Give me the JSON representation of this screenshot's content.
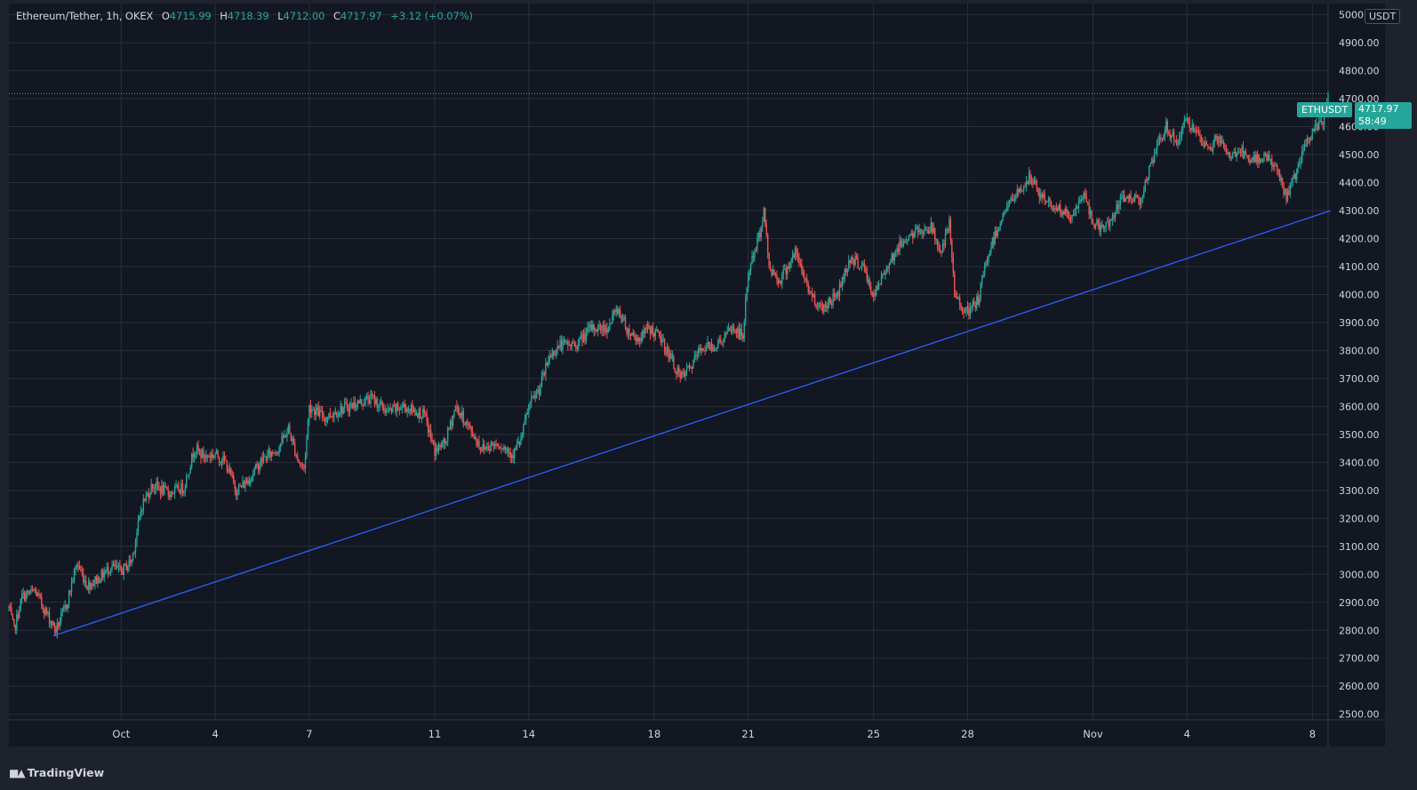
{
  "header": {
    "symbol": "Ethereum/Tether, 1h, OKEX",
    "o_label": "O",
    "o_value": "4715.99",
    "h_label": "H",
    "h_value": "4718.39",
    "l_label": "L",
    "l_value": "4712.00",
    "c_label": "C",
    "c_value": "4717.97",
    "change": "+3.12 (+0.07%)"
  },
  "price_badge": {
    "symbol": "ETHUSDT",
    "price": "4717.97",
    "countdown": "58:49"
  },
  "currency_unit": "USDT",
  "brand": {
    "name": "TradingView"
  },
  "colors": {
    "background": "#131722",
    "grid": "#2a2e39",
    "up": "#26a69a",
    "down": "#ef5350",
    "trendline": "#2962ff",
    "text": "#d1d4dc"
  },
  "chart_data": {
    "type": "candlestick",
    "title": "",
    "xlabel": "",
    "ylabel": "",
    "interval": "1h",
    "ylim": [
      2480,
      5040
    ],
    "y_ticks": [
      2500,
      2600,
      2700,
      2800,
      2900,
      3000,
      3100,
      3200,
      3300,
      3400,
      3500,
      3600,
      3700,
      3800,
      3900,
      4000,
      4100,
      4200,
      4300,
      4400,
      4500,
      4600,
      4700,
      4800,
      4900,
      5000
    ],
    "y_tick_labels": [
      "2500.00",
      "2600.00",
      "2700.00",
      "2800.00",
      "2900.00",
      "3000.00",
      "3100.00",
      "3200.00",
      "3300.00",
      "3400.00",
      "3500.00",
      "3600.00",
      "3700.00",
      "3800.00",
      "3900.00",
      "4000.00",
      "4100.00",
      "4200.00",
      "4300.00",
      "4400.00",
      "4500.00",
      "4600.00",
      "4700.00",
      "4800.00",
      "4900.00",
      "5000.00"
    ],
    "xlim": [
      "2021-09-27T10:00",
      "2021-11-08T12:00"
    ],
    "x_ticks": [
      {
        "label": "Oct",
        "date": "2021-10-01T00:00"
      },
      {
        "label": "4",
        "date": "2021-10-04T00:00"
      },
      {
        "label": "7",
        "date": "2021-10-07T00:00"
      },
      {
        "label": "11",
        "date": "2021-10-11T00:00"
      },
      {
        "label": "14",
        "date": "2021-10-14T00:00"
      },
      {
        "label": "18",
        "date": "2021-10-18T00:00"
      },
      {
        "label": "21",
        "date": "2021-10-21T00:00"
      },
      {
        "label": "25",
        "date": "2021-10-25T00:00"
      },
      {
        "label": "28",
        "date": "2021-10-28T00:00"
      },
      {
        "label": "Nov",
        "date": "2021-11-01T00:00"
      },
      {
        "label": "4",
        "date": "2021-11-04T00:00"
      },
      {
        "label": "8",
        "date": "2021-11-08T00:00"
      }
    ],
    "price_anchors": [
      [
        "2021-09-27T10:00",
        2880
      ],
      [
        "2021-09-27T14:00",
        2800
      ],
      [
        "2021-09-27T20:00",
        2920
      ],
      [
        "2021-09-28T06:00",
        2940
      ],
      [
        "2021-09-28T16:00",
        2850
      ],
      [
        "2021-09-28T22:00",
        2800
      ],
      [
        "2021-09-29T06:00",
        2890
      ],
      [
        "2021-09-29T14:00",
        3040
      ],
      [
        "2021-09-29T22:00",
        2960
      ],
      [
        "2021-09-30T08:00",
        2990
      ],
      [
        "2021-09-30T16:00",
        3030
      ],
      [
        "2021-10-01T00:00",
        3010
      ],
      [
        "2021-10-01T08:00",
        3050
      ],
      [
        "2021-10-01T16:00",
        3250
      ],
      [
        "2021-10-02T00:00",
        3320
      ],
      [
        "2021-10-02T12:00",
        3290
      ],
      [
        "2021-10-03T00:00",
        3310
      ],
      [
        "2021-10-03T08:00",
        3450
      ],
      [
        "2021-10-03T16:00",
        3420
      ],
      [
        "2021-10-04T00:00",
        3430
      ],
      [
        "2021-10-04T08:00",
        3400
      ],
      [
        "2021-10-04T16:00",
        3300
      ],
      [
        "2021-10-05T00:00",
        3330
      ],
      [
        "2021-10-05T12:00",
        3410
      ],
      [
        "2021-10-06T00:00",
        3450
      ],
      [
        "2021-10-06T08:00",
        3520
      ],
      [
        "2021-10-06T16:00",
        3400
      ],
      [
        "2021-10-06T20:00",
        3380
      ],
      [
        "2021-10-07T00:00",
        3600
      ],
      [
        "2021-10-07T12:00",
        3560
      ],
      [
        "2021-10-08T00:00",
        3590
      ],
      [
        "2021-10-08T12:00",
        3610
      ],
      [
        "2021-10-09T00:00",
        3630
      ],
      [
        "2021-10-09T12:00",
        3580
      ],
      [
        "2021-10-10T00:00",
        3600
      ],
      [
        "2021-10-10T16:00",
        3570
      ],
      [
        "2021-10-11T00:00",
        3440
      ],
      [
        "2021-10-11T08:00",
        3470
      ],
      [
        "2021-10-11T16:00",
        3600
      ],
      [
        "2021-10-12T00:00",
        3540
      ],
      [
        "2021-10-12T12:00",
        3450
      ],
      [
        "2021-10-13T00:00",
        3470
      ],
      [
        "2021-10-13T12:00",
        3430
      ],
      [
        "2021-10-13T18:00",
        3480
      ],
      [
        "2021-10-14T00:00",
        3600
      ],
      [
        "2021-10-14T08:00",
        3660
      ],
      [
        "2021-10-14T16:00",
        3780
      ],
      [
        "2021-10-15T00:00",
        3820
      ],
      [
        "2021-10-15T12:00",
        3820
      ],
      [
        "2021-10-16T00:00",
        3880
      ],
      [
        "2021-10-16T12:00",
        3880
      ],
      [
        "2021-10-16T20:00",
        3950
      ],
      [
        "2021-10-17T04:00",
        3870
      ],
      [
        "2021-10-17T12:00",
        3840
      ],
      [
        "2021-10-17T20:00",
        3880
      ],
      [
        "2021-10-18T04:00",
        3850
      ],
      [
        "2021-10-18T12:00",
        3780
      ],
      [
        "2021-10-18T20:00",
        3700
      ],
      [
        "2021-10-19T04:00",
        3740
      ],
      [
        "2021-10-19T12:00",
        3810
      ],
      [
        "2021-10-20T00:00",
        3820
      ],
      [
        "2021-10-20T12:00",
        3880
      ],
      [
        "2021-10-20T20:00",
        3850
      ],
      [
        "2021-10-21T00:00",
        4080
      ],
      [
        "2021-10-21T08:00",
        4200
      ],
      [
        "2021-10-21T12:00",
        4300
      ],
      [
        "2021-10-21T16:00",
        4100
      ],
      [
        "2021-10-22T00:00",
        4050
      ],
      [
        "2021-10-22T12:00",
        4150
      ],
      [
        "2021-10-23T00:00",
        4000
      ],
      [
        "2021-10-23T08:00",
        3950
      ],
      [
        "2021-10-23T20:00",
        4000
      ],
      [
        "2021-10-24T06:00",
        4130
      ],
      [
        "2021-10-24T16:00",
        4100
      ],
      [
        "2021-10-25T00:00",
        3990
      ],
      [
        "2021-10-25T12:00",
        4120
      ],
      [
        "2021-10-26T00:00",
        4200
      ],
      [
        "2021-10-26T12:00",
        4230
      ],
      [
        "2021-10-26T20:00",
        4240
      ],
      [
        "2021-10-27T04:00",
        4150
      ],
      [
        "2021-10-27T10:00",
        4250
      ],
      [
        "2021-10-27T14:00",
        4000
      ],
      [
        "2021-10-28T00:00",
        3930
      ],
      [
        "2021-10-28T08:00",
        3980
      ],
      [
        "2021-10-28T16:00",
        4150
      ],
      [
        "2021-10-29T04:00",
        4300
      ],
      [
        "2021-10-29T14:00",
        4360
      ],
      [
        "2021-10-30T00:00",
        4420
      ],
      [
        "2021-10-30T08:00",
        4350
      ],
      [
        "2021-10-30T20:00",
        4310
      ],
      [
        "2021-10-31T08:00",
        4270
      ],
      [
        "2021-10-31T16:00",
        4360
      ],
      [
        "2021-11-01T00:00",
        4260
      ],
      [
        "2021-11-01T08:00",
        4230
      ],
      [
        "2021-11-01T16:00",
        4290
      ],
      [
        "2021-11-02T00:00",
        4350
      ],
      [
        "2021-11-02T12:00",
        4340
      ],
      [
        "2021-11-03T00:00",
        4510
      ],
      [
        "2021-11-03T08:00",
        4600
      ],
      [
        "2021-11-03T16:00",
        4540
      ],
      [
        "2021-11-04T00:00",
        4630
      ],
      [
        "2021-11-04T08:00",
        4560
      ],
      [
        "2021-11-04T16:00",
        4520
      ],
      [
        "2021-11-05T00:00",
        4560
      ],
      [
        "2021-11-05T08:00",
        4490
      ],
      [
        "2021-11-05T16:00",
        4520
      ],
      [
        "2021-11-06T00:00",
        4470
      ],
      [
        "2021-11-06T12:00",
        4500
      ],
      [
        "2021-11-06T20:00",
        4450
      ],
      [
        "2021-11-07T04:00",
        4350
      ],
      [
        "2021-11-07T12:00",
        4440
      ],
      [
        "2021-11-07T20:00",
        4550
      ],
      [
        "2021-11-08T04:00",
        4600
      ],
      [
        "2021-11-08T08:00",
        4620
      ],
      [
        "2021-11-08T12:00",
        4718
      ]
    ],
    "trendline": {
      "start": [
        "2021-09-28T20:00",
        2780
      ],
      "end": [
        "2021-11-08T14:00",
        4300
      ]
    },
    "last_price": 4717.97
  }
}
